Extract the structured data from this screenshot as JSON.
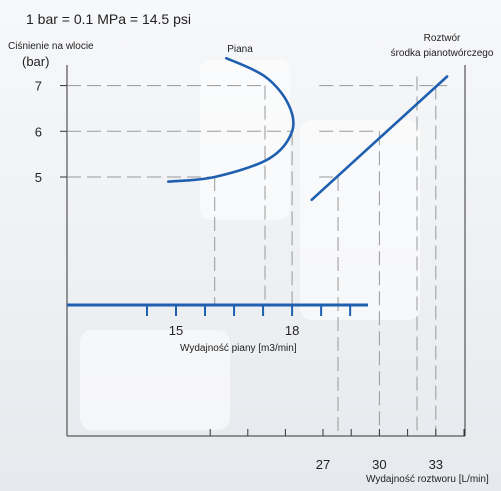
{
  "header": {
    "conversion": "1 bar = 0.1 MPa = 14.5 psi"
  },
  "colors": {
    "curve": "#1f5fb0",
    "axis": "#333333",
    "guide": "#999999",
    "text": "#222222"
  },
  "chart_data": {
    "type": "line",
    "y_axis": {
      "label": "Ciśnienie na wlocie",
      "unit": "(bar)",
      "ticks": [
        5,
        6,
        7
      ],
      "range": [
        4,
        8
      ]
    },
    "foam_axis": {
      "label": "Wydajność piany [m3/min]",
      "tick_labels": [
        15,
        18
      ],
      "range": [
        12,
        20
      ],
      "minor_ticks": [
        14.25,
        15,
        15.75,
        16.5,
        17.25,
        18,
        18.75,
        19.5
      ]
    },
    "solution_axis": {
      "label": "Wydajność roztworu [L/min]",
      "tick_labels": [
        27,
        30,
        33
      ],
      "range": [
        19,
        37
      ],
      "minor_ticks": [
        21,
        23,
        25,
        27,
        28.5,
        30,
        31.5,
        33,
        34.5
      ]
    },
    "series": [
      {
        "name": "Piana",
        "axis": "foam",
        "points": [
          [
            14.8,
            4.9
          ],
          [
            16.0,
            5.0
          ],
          [
            17.4,
            5.4
          ],
          [
            18.0,
            6.0
          ],
          [
            17.9,
            6.6
          ],
          [
            17.3,
            7.2
          ],
          [
            16.3,
            7.6
          ]
        ]
      },
      {
        "name": "Roztwór środka pianotwórczego",
        "axis": "solution",
        "points": [
          [
            26.4,
            4.5
          ],
          [
            33.6,
            7.2
          ]
        ]
      }
    ],
    "series_labels": {
      "foam": "Piana",
      "solution_line1": "Roztwór",
      "solution_line2": "środka pianotwórczego"
    }
  }
}
